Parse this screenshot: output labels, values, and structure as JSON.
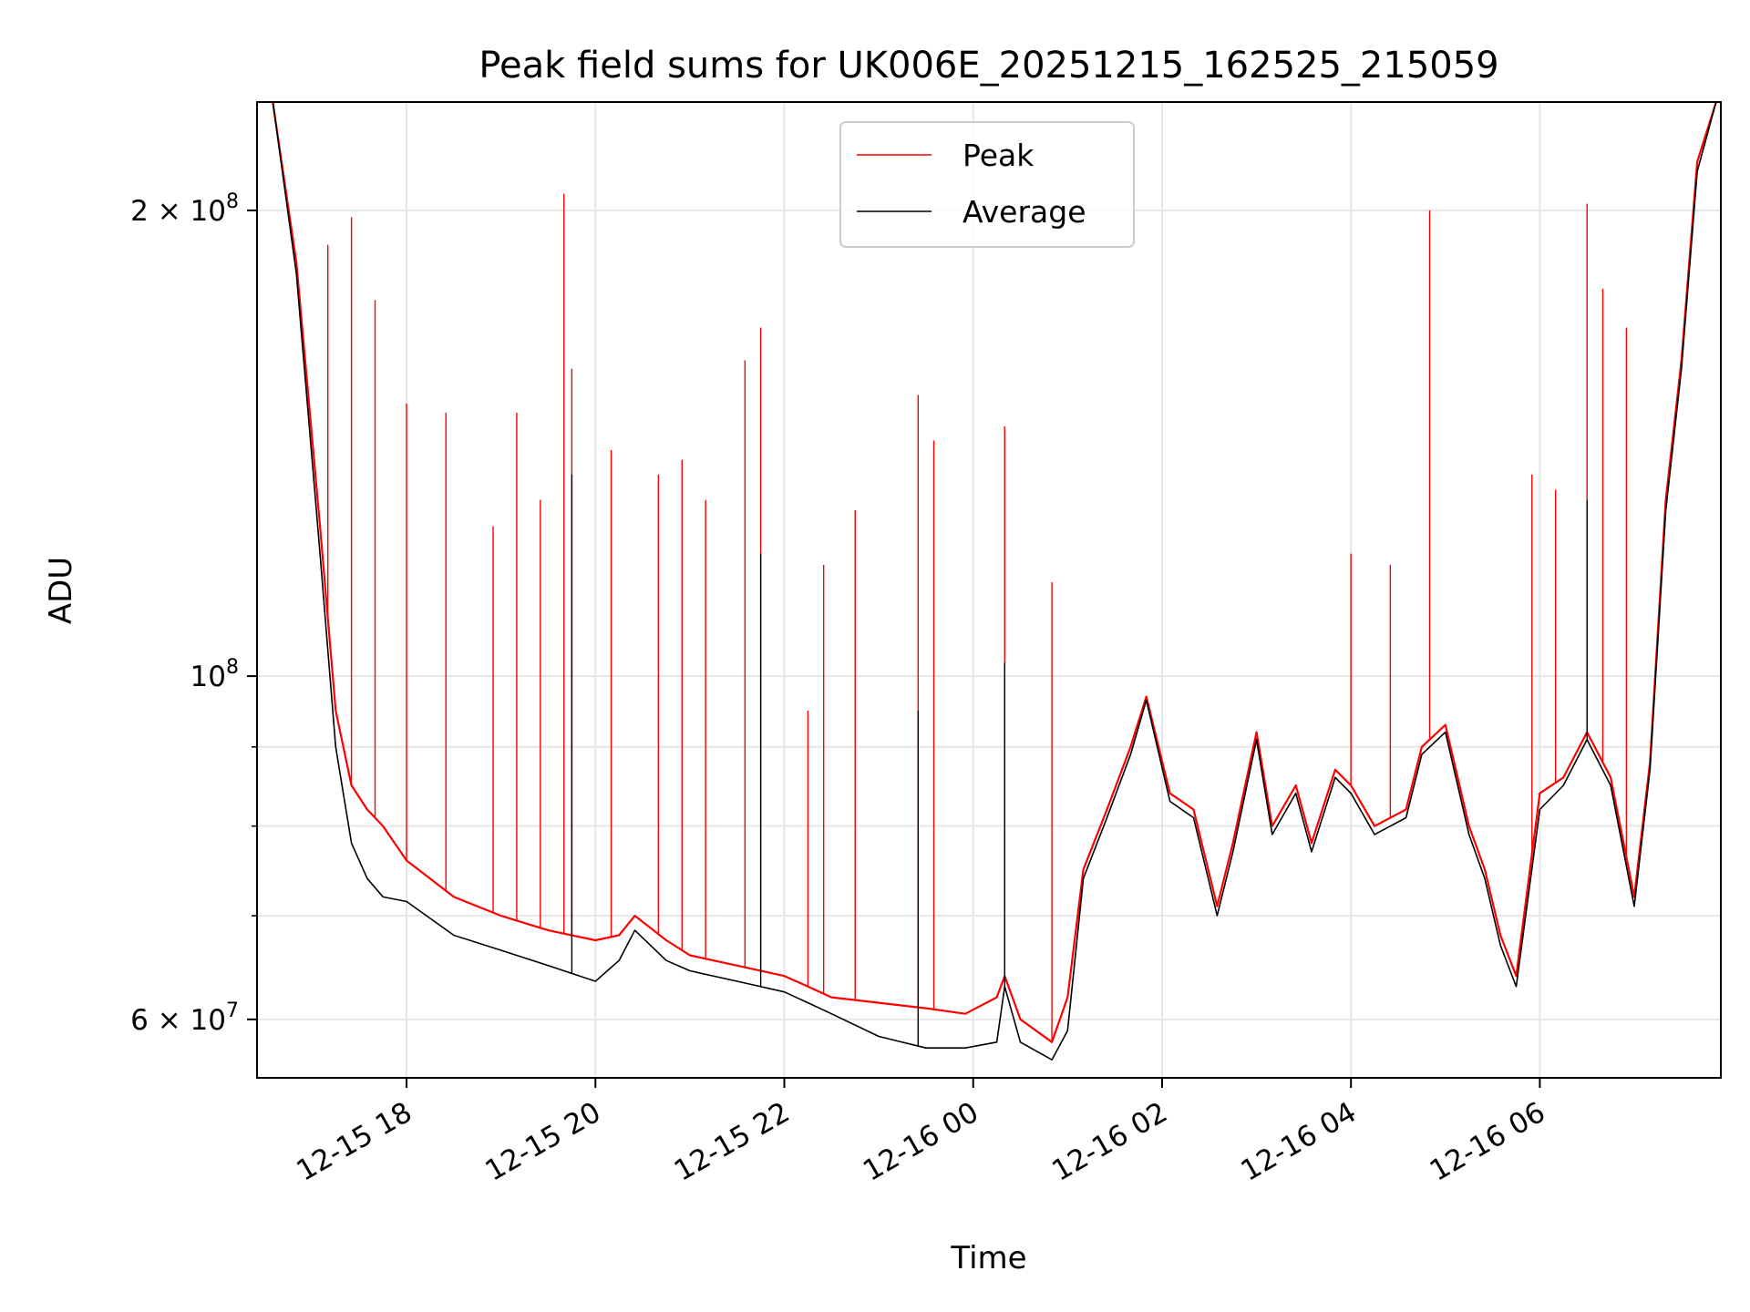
{
  "chart_data": {
    "type": "line",
    "title": "Peak field sums for UK006E_20251215_162525_215059",
    "xlabel": "Time",
    "ylabel": "ADU",
    "yscale": "log",
    "ylim": [
      55000000,
      235000000
    ],
    "xlim": [
      "2025-12-15 16:25",
      "2025-12-16 07:55"
    ],
    "grid": true,
    "legend_position": "upper center",
    "x_ticks": [
      {
        "t": "2025-12-15 18:00",
        "label": "12-15 18"
      },
      {
        "t": "2025-12-15 20:00",
        "label": "12-15 20"
      },
      {
        "t": "2025-12-15 22:00",
        "label": "12-15 22"
      },
      {
        "t": "2025-12-16 00:00",
        "label": "12-16 00"
      },
      {
        "t": "2025-12-16 02:00",
        "label": "12-16 02"
      },
      {
        "t": "2025-12-16 04:00",
        "label": "12-16 04"
      },
      {
        "t": "2025-12-16 06:00",
        "label": "12-16 06"
      }
    ],
    "y_ticks": [
      {
        "value": 60000000,
        "mantissa": "6",
        "exponent": "7"
      },
      {
        "value": 100000000,
        "mantissa": "",
        "exponent": "8"
      },
      {
        "value": 200000000,
        "mantissa": "2",
        "exponent": "8"
      }
    ],
    "y_minor_ticks": [
      70000000,
      80000000,
      90000000
    ],
    "series": [
      {
        "name": "Peak",
        "color": "#ff0000",
        "x": [
          "2025-12-15 16:35",
          "2025-12-15 16:50",
          "2025-12-15 17:05",
          "2025-12-15 17:15",
          "2025-12-15 17:25",
          "2025-12-15 17:35",
          "2025-12-15 17:45",
          "2025-12-15 18:00",
          "2025-12-15 18:30",
          "2025-12-15 19:00",
          "2025-12-15 19:30",
          "2025-12-15 20:00",
          "2025-12-15 20:15",
          "2025-12-15 20:25",
          "2025-12-15 20:45",
          "2025-12-15 21:00",
          "2025-12-15 21:30",
          "2025-12-15 22:00",
          "2025-12-15 22:15",
          "2025-12-15 22:30",
          "2025-12-15 23:00",
          "2025-12-15 23:30",
          "2025-12-15 23:55",
          "2025-12-16 00:15",
          "2025-12-16 00:20",
          "2025-12-16 00:30",
          "2025-12-16 00:50",
          "2025-12-16 01:00",
          "2025-12-16 01:10",
          "2025-12-16 01:25",
          "2025-12-16 01:40",
          "2025-12-16 01:50",
          "2025-12-16 02:05",
          "2025-12-16 02:20",
          "2025-12-16 02:35",
          "2025-12-16 02:45",
          "2025-12-16 03:00",
          "2025-12-16 03:10",
          "2025-12-16 03:25",
          "2025-12-16 03:35",
          "2025-12-16 03:50",
          "2025-12-16 04:00",
          "2025-12-16 04:15",
          "2025-12-16 04:35",
          "2025-12-16 04:45",
          "2025-12-16 05:00",
          "2025-12-16 05:15",
          "2025-12-16 05:25",
          "2025-12-16 05:35",
          "2025-12-16 05:45",
          "2025-12-16 06:00",
          "2025-12-16 06:15",
          "2025-12-16 06:30",
          "2025-12-16 06:45",
          "2025-12-16 07:00",
          "2025-12-16 07:10",
          "2025-12-16 07:20",
          "2025-12-16 07:30",
          "2025-12-16 07:40",
          "2025-12-16 07:52"
        ],
        "y": [
          235000000,
          185000000,
          125000000,
          95000000,
          85000000,
          82000000,
          80000000,
          76000000,
          72000000,
          70000000,
          68500000,
          67500000,
          68000000,
          70000000,
          67500000,
          66000000,
          65000000,
          64000000,
          63000000,
          62000000,
          61500000,
          61000000,
          60500000,
          62000000,
          64000000,
          60000000,
          58000000,
          62000000,
          75000000,
          82000000,
          90000000,
          97000000,
          84000000,
          82000000,
          71000000,
          78000000,
          92000000,
          80000000,
          85000000,
          78000000,
          87000000,
          85000000,
          80000000,
          82000000,
          90000000,
          93000000,
          80000000,
          75000000,
          68000000,
          64000000,
          84000000,
          86000000,
          92000000,
          86000000,
          72000000,
          88000000,
          130000000,
          160000000,
          215000000,
          235000000
        ],
        "spikes": [
          {
            "x": "2025-12-15 17:10",
            "y": 190000000
          },
          {
            "x": "2025-12-15 17:25",
            "y": 198000000
          },
          {
            "x": "2025-12-15 17:40",
            "y": 175000000
          },
          {
            "x": "2025-12-15 18:00",
            "y": 150000000
          },
          {
            "x": "2025-12-15 18:25",
            "y": 148000000
          },
          {
            "x": "2025-12-15 18:55",
            "y": 125000000
          },
          {
            "x": "2025-12-15 19:10",
            "y": 148000000
          },
          {
            "x": "2025-12-15 19:25",
            "y": 130000000
          },
          {
            "x": "2025-12-15 19:40",
            "y": 205000000
          },
          {
            "x": "2025-12-15 19:45",
            "y": 158000000
          },
          {
            "x": "2025-12-15 20:10",
            "y": 140000000
          },
          {
            "x": "2025-12-15 20:40",
            "y": 135000000
          },
          {
            "x": "2025-12-15 20:55",
            "y": 138000000
          },
          {
            "x": "2025-12-15 21:10",
            "y": 130000000
          },
          {
            "x": "2025-12-15 21:35",
            "y": 160000000
          },
          {
            "x": "2025-12-15 21:45",
            "y": 168000000
          },
          {
            "x": "2025-12-15 22:15",
            "y": 95000000
          },
          {
            "x": "2025-12-15 22:25",
            "y": 118000000
          },
          {
            "x": "2025-12-15 22:45",
            "y": 128000000
          },
          {
            "x": "2025-12-15 23:25",
            "y": 152000000
          },
          {
            "x": "2025-12-15 23:35",
            "y": 142000000
          },
          {
            "x": "2025-12-16 00:20",
            "y": 145000000
          },
          {
            "x": "2025-12-16 00:50",
            "y": 115000000
          },
          {
            "x": "2025-12-16 04:00",
            "y": 120000000
          },
          {
            "x": "2025-12-16 04:25",
            "y": 118000000
          },
          {
            "x": "2025-12-16 04:50",
            "y": 200000000
          },
          {
            "x": "2025-12-16 05:55",
            "y": 135000000
          },
          {
            "x": "2025-12-16 06:10",
            "y": 132000000
          },
          {
            "x": "2025-12-16 06:30",
            "y": 202000000
          },
          {
            "x": "2025-12-16 06:40",
            "y": 178000000
          },
          {
            "x": "2025-12-16 06:55",
            "y": 168000000
          }
        ]
      },
      {
        "name": "Average",
        "color": "#000000",
        "x": [
          "2025-12-15 16:35",
          "2025-12-15 16:50",
          "2025-12-15 17:05",
          "2025-12-15 17:15",
          "2025-12-15 17:25",
          "2025-12-15 17:35",
          "2025-12-15 17:45",
          "2025-12-15 18:00",
          "2025-12-15 18:30",
          "2025-12-15 19:00",
          "2025-12-15 19:30",
          "2025-12-15 20:00",
          "2025-12-15 20:15",
          "2025-12-15 20:25",
          "2025-12-15 20:45",
          "2025-12-15 21:00",
          "2025-12-15 21:30",
          "2025-12-15 22:00",
          "2025-12-15 22:15",
          "2025-12-15 22:30",
          "2025-12-15 23:00",
          "2025-12-15 23:30",
          "2025-12-15 23:55",
          "2025-12-16 00:15",
          "2025-12-16 00:20",
          "2025-12-16 00:30",
          "2025-12-16 00:50",
          "2025-12-16 01:00",
          "2025-12-16 01:10",
          "2025-12-16 01:25",
          "2025-12-16 01:40",
          "2025-12-16 01:50",
          "2025-12-16 02:05",
          "2025-12-16 02:20",
          "2025-12-16 02:35",
          "2025-12-16 02:45",
          "2025-12-16 03:00",
          "2025-12-16 03:10",
          "2025-12-16 03:25",
          "2025-12-16 03:35",
          "2025-12-16 03:50",
          "2025-12-16 04:00",
          "2025-12-16 04:15",
          "2025-12-16 04:35",
          "2025-12-16 04:45",
          "2025-12-16 05:00",
          "2025-12-16 05:15",
          "2025-12-16 05:25",
          "2025-12-16 05:35",
          "2025-12-16 05:45",
          "2025-12-16 06:00",
          "2025-12-16 06:15",
          "2025-12-16 06:30",
          "2025-12-16 06:45",
          "2025-12-16 07:00",
          "2025-12-16 07:10",
          "2025-12-16 07:20",
          "2025-12-16 07:30",
          "2025-12-16 07:40",
          "2025-12-16 07:52"
        ],
        "y": [
          235000000,
          182000000,
          120000000,
          90000000,
          78000000,
          74000000,
          72000000,
          71500000,
          68000000,
          66500000,
          65000000,
          63500000,
          65500000,
          68500000,
          65500000,
          64500000,
          63500000,
          62500000,
          61500000,
          60500000,
          58500000,
          57500000,
          57500000,
          58000000,
          63000000,
          58000000,
          56500000,
          59000000,
          74000000,
          81000000,
          89000000,
          96500000,
          83000000,
          81000000,
          70000000,
          77000000,
          91000000,
          79000000,
          84000000,
          77000000,
          86000000,
          84000000,
          79000000,
          81000000,
          89000000,
          92000000,
          79000000,
          74000000,
          67000000,
          63000000,
          82000000,
          85000000,
          91000000,
          85000000,
          71000000,
          87000000,
          128000000,
          158000000,
          212000000,
          235000000
        ],
        "spikes": [
          {
            "x": "2025-12-15 19:45",
            "y": 135000000
          },
          {
            "x": "2025-12-15 21:45",
            "y": 120000000
          },
          {
            "x": "2025-12-15 23:25",
            "y": 95000000
          },
          {
            "x": "2025-12-16 00:20",
            "y": 102000000
          },
          {
            "x": "2025-12-16 06:30",
            "y": 130000000
          }
        ]
      }
    ]
  }
}
